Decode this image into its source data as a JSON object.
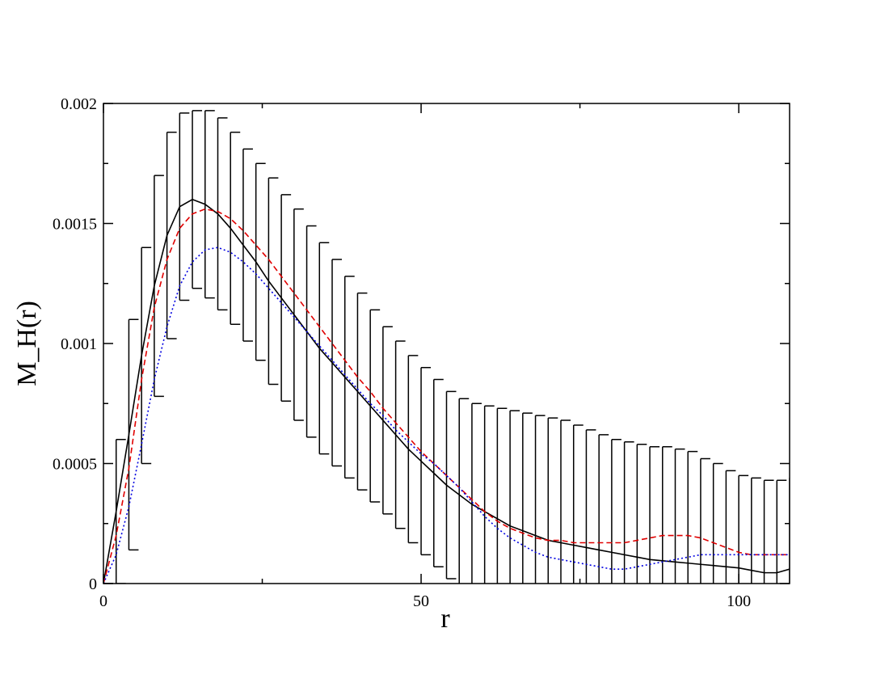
{
  "chart_data": {
    "type": "line",
    "x_label": "r",
    "y_label": "M_H(r)",
    "xlim": [
      0,
      108
    ],
    "ylim": [
      0,
      0.002
    ],
    "xticks": [
      0,
      50,
      100
    ],
    "yticks": [
      0,
      0.0005,
      0.001,
      0.0015,
      0.002
    ],
    "xminor": [
      25,
      75
    ],
    "yminor": [
      0.00025,
      0.00075,
      0.00125,
      0.00175
    ],
    "x": [
      0,
      2,
      4,
      6,
      8,
      10,
      12,
      14,
      16,
      18,
      20,
      22,
      24,
      26,
      28,
      30,
      32,
      34,
      36,
      38,
      40,
      42,
      44,
      46,
      48,
      50,
      52,
      54,
      56,
      58,
      60,
      62,
      64,
      66,
      68,
      70,
      72,
      74,
      76,
      78,
      80,
      82,
      84,
      86,
      88,
      90,
      92,
      94,
      96,
      98,
      100,
      102,
      104,
      106,
      108
    ],
    "series": [
      {
        "color": "#000000",
        "dash": "solid",
        "values": [
          0,
          0.0003,
          0.00062,
          0.00095,
          0.00124,
          0.00145,
          0.00157,
          0.0016,
          0.00158,
          0.00154,
          0.00148,
          0.00141,
          0.00134,
          0.00126,
          0.00119,
          0.00112,
          0.00105,
          0.00098,
          0.00092,
          0.00086,
          0.0008,
          0.00074,
          0.00068,
          0.00062,
          0.00056,
          0.00051,
          0.00046,
          0.00041,
          0.00037,
          0.00033,
          0.0003,
          0.00027,
          0.00024,
          0.00022,
          0.0002,
          0.00018,
          0.00017,
          0.00016,
          0.00015,
          0.00014,
          0.00013,
          0.00012,
          0.00011,
          0.0001,
          9.5e-05,
          9e-05,
          8.5e-05,
          8e-05,
          7.5e-05,
          7e-05,
          6.5e-05,
          5.5e-05,
          4.5e-05,
          4.5e-05,
          6e-05
        ],
        "errors": [
          0,
          0.0003,
          0.00048,
          0.00045,
          0.00046,
          0.00043,
          0.00039,
          0.00037,
          0.00039,
          0.0004,
          0.0004,
          0.0004,
          0.00041,
          0.00043,
          0.00043,
          0.00044,
          0.00044,
          0.00044,
          0.00043,
          0.00042,
          0.00041,
          0.0004,
          0.00039,
          0.00039,
          0.00039,
          0.00039,
          0.00039,
          0.00039,
          0.0004,
          0.00042,
          0.00044,
          0.00046,
          0.00048,
          0.00049,
          0.0005,
          0.00051,
          0.00051,
          0.0005,
          0.00049,
          0.00048,
          0.00047,
          0.00047,
          0.00047,
          0.00047,
          0.000475,
          0.00047,
          0.000465,
          0.00044,
          0.000425,
          0.0004,
          0.000385,
          0.000385,
          0.000385,
          0.000385,
          0.00038
        ]
      },
      {
        "color": "#e00000",
        "dash": "dashed",
        "values": [
          0,
          0.0002,
          0.00048,
          0.00085,
          0.00115,
          0.00135,
          0.00148,
          0.00154,
          0.00156,
          0.00155,
          0.00152,
          0.00147,
          0.00141,
          0.00135,
          0.00128,
          0.00121,
          0.00114,
          0.00107,
          0.001,
          0.00093,
          0.00086,
          0.0008,
          0.00073,
          0.00067,
          0.00061,
          0.00055,
          0.0005,
          0.00045,
          0.0004,
          0.00035,
          0.0003,
          0.00026,
          0.00023,
          0.00021,
          0.00019,
          0.00018,
          0.00018,
          0.00017,
          0.00017,
          0.00017,
          0.00017,
          0.00017,
          0.00018,
          0.00019,
          0.0002,
          0.0002,
          0.0002,
          0.00019,
          0.00017,
          0.00015,
          0.00013,
          0.00012,
          0.00012,
          0.00012,
          0.00012
        ]
      },
      {
        "color": "#0000e0",
        "dash": "dotted",
        "values": [
          0,
          0.00012,
          0.00032,
          0.00058,
          0.00085,
          0.00107,
          0.00124,
          0.00134,
          0.00139,
          0.0014,
          0.00138,
          0.00134,
          0.00129,
          0.00123,
          0.00117,
          0.00111,
          0.00105,
          0.00099,
          0.00093,
          0.00087,
          0.00081,
          0.00075,
          0.0007,
          0.00064,
          0.00059,
          0.00054,
          0.0005,
          0.00045,
          0.0004,
          0.00034,
          0.00028,
          0.00023,
          0.00019,
          0.00016,
          0.00013,
          0.00011,
          0.0001,
          9e-05,
          8e-05,
          7e-05,
          6e-05,
          6e-05,
          7e-05,
          8e-05,
          9e-05,
          0.0001,
          0.00011,
          0.00012,
          0.00012,
          0.00012,
          0.00012,
          0.00012,
          0.00012,
          0.00012,
          0.00012
        ]
      }
    ]
  }
}
